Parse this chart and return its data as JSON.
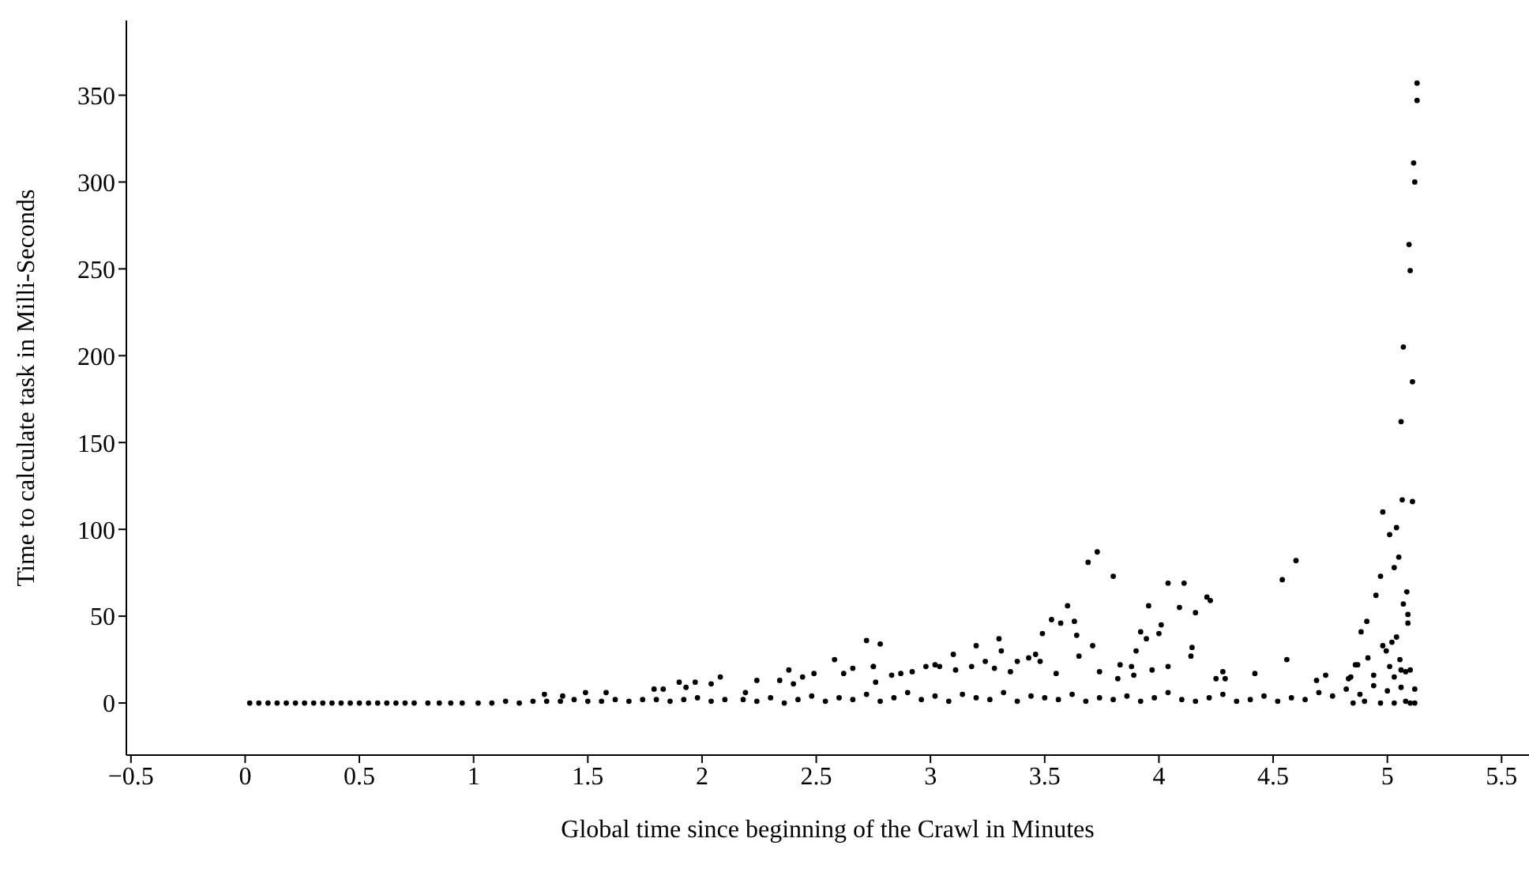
{
  "chart_data": {
    "type": "scatter",
    "xlabel": "Global time since beginning of the Crawl in Minutes",
    "ylabel": "Time to calculate task in Milli-Seconds",
    "color": "#000000",
    "marker": "circle",
    "grid": false,
    "xlim": [
      -0.52,
      5.62
    ],
    "xticks": [
      {
        "value": -0.5,
        "label": "−0.5"
      },
      0,
      0.5,
      1,
      1.5,
      2,
      2.5,
      3,
      3.5,
      4,
      4.5,
      5,
      5.5
    ],
    "ylim": [
      -30,
      393
    ],
    "yticks": [
      0,
      50,
      100,
      150,
      200,
      250,
      300,
      350
    ],
    "x": [
      5.13,
      5.13,
      5.115,
      5.12,
      5.095,
      5.1,
      5.07,
      5.11,
      5.06,
      5.065,
      5.11,
      4.98,
      5.01,
      5.04,
      5.05,
      5.03,
      4.97,
      4.95,
      5.085,
      5.07,
      5.09,
      5.09,
      4.91,
      4.885,
      5.04,
      5.02,
      4.98,
      4.995,
      4.915,
      4.87,
      5.055,
      5.01,
      5.06,
      5.08,
      5.1,
      5.03,
      4.94,
      5.12,
      4.84,
      3.73,
      3.69,
      3.8,
      4.6,
      4.54,
      4.04,
      4.11,
      4.21,
      4.225,
      3.955,
      4.09,
      4.16,
      3.6,
      3.53,
      3.57,
      3.63,
      4.01,
      3.92,
      3.49,
      3.64,
      3.945,
      4.0,
      3.3,
      4.145,
      3.71,
      2.78,
      3.9,
      3.2,
      3.31,
      3.65,
      4.14,
      3.1,
      4.56,
      3.46,
      3.43,
      3.38,
      3.48,
      3.24,
      4.04,
      3.83,
      3.88,
      3.02,
      2.98,
      3.04,
      3.18,
      3.97,
      3.74,
      3.28,
      3.35,
      3.11,
      3.55,
      4.28,
      4.42,
      2.92,
      2.87,
      2.83,
      3.82,
      3.89,
      4.25,
      4.29,
      4.69,
      4.73,
      4.83,
      4.86,
      2.75,
      2.76,
      2.72,
      2.75,
      2.58,
      2.66,
      2.38,
      2.49,
      2.44,
      2.4,
      2.62,
      2.08,
      2.04,
      1.97,
      1.9,
      2.24,
      2.34,
      1.93,
      1.83,
      1.79,
      1.58,
      1.49,
      1.31,
      1.39,
      2.19,
      0.02,
      0.06,
      0.1,
      0.14,
      0.18,
      0.22,
      0.26,
      0.3,
      0.34,
      0.38,
      0.42,
      0.46,
      0.5,
      0.54,
      0.58,
      0.62,
      0.66,
      0.7,
      0.74,
      0.8,
      0.85,
      0.9,
      0.95,
      1.02,
      1.08,
      1.14,
      1.2,
      1.26,
      1.32,
      1.38,
      1.44,
      1.5,
      1.56,
      1.62,
      1.68,
      1.74,
      1.8,
      1.86,
      1.92,
      1.98,
      2.04,
      2.1,
      2.18,
      2.24,
      2.3,
      2.36,
      2.42,
      2.48,
      2.54,
      2.6,
      2.66,
      2.72,
      2.78,
      2.84,
      2.9,
      2.96,
      3.02,
      3.08,
      3.14,
      3.2,
      3.26,
      3.32,
      3.38,
      3.44,
      3.5,
      3.56,
      3.62,
      3.68,
      3.74,
      3.8,
      3.86,
      3.92,
      3.98,
      4.04,
      4.1,
      4.16,
      4.22,
      4.28,
      4.34,
      4.4,
      4.46,
      4.52,
      4.58,
      4.64,
      4.7,
      4.76,
      4.82,
      4.88,
      4.94,
      5.0,
      5.06,
      5.12,
      4.85,
      4.9,
      4.97,
      5.03,
      5.08,
      5.1
    ],
    "values": [
      357,
      347,
      311,
      300,
      264,
      249,
      205,
      185,
      162,
      117,
      116,
      110,
      97,
      101,
      84,
      78,
      73,
      62,
      64,
      57,
      51,
      46,
      47,
      41,
      38,
      35,
      33,
      30,
      26,
      22,
      25,
      21,
      19,
      18,
      19,
      15,
      16,
      8,
      15,
      87,
      81,
      73,
      82,
      71,
      69,
      69,
      61,
      59,
      56,
      55,
      52,
      56,
      48,
      46,
      47,
      45,
      41,
      40,
      39,
      37,
      40,
      37,
      32,
      33,
      34,
      30,
      33,
      30,
      27,
      27,
      28,
      25,
      28,
      26,
      24,
      24,
      24,
      21,
      22,
      21,
      22,
      21,
      21,
      21,
      19,
      18,
      20,
      18,
      19,
      17,
      18,
      17,
      18,
      17,
      16,
      14,
      16,
      14,
      14,
      13,
      16,
      14,
      22,
      21,
      12,
      36,
      21,
      25,
      20,
      19,
      17,
      15,
      11,
      17,
      15,
      11,
      12,
      12,
      13,
      13,
      9,
      8,
      8,
      6,
      6,
      5,
      4,
      6,
      0,
      0,
      0,
      0,
      0,
      0,
      0,
      0,
      0,
      0,
      0,
      0,
      0,
      0,
      0,
      0,
      0,
      0,
      0,
      0,
      0,
      0,
      0,
      0,
      0,
      1,
      0,
      1,
      1,
      1,
      2,
      1,
      1,
      2,
      1,
      2,
      2,
      1,
      2,
      3,
      1,
      2,
      2,
      1,
      3,
      0,
      2,
      4,
      1,
      3,
      2,
      5,
      1,
      3,
      6,
      2,
      4,
      1,
      5,
      3,
      2,
      6,
      1,
      4,
      3,
      2,
      5,
      1,
      3,
      2,
      4,
      1,
      3,
      6,
      2,
      1,
      3,
      5,
      1,
      2,
      4,
      1,
      3,
      2,
      6,
      4,
      8,
      5,
      10,
      7,
      9,
      0,
      0,
      1,
      0,
      0,
      1,
      0
    ]
  }
}
